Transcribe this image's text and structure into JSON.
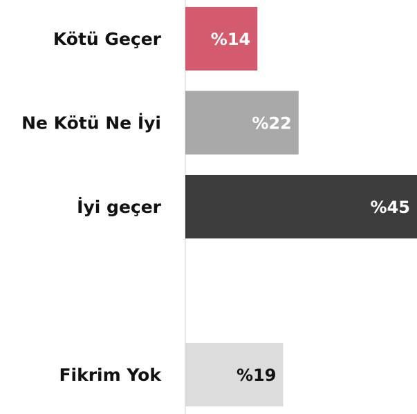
{
  "chart_data": {
    "type": "hbar",
    "categories": [
      "Kötü Geçer",
      "Ne Kötü Ne İyi",
      "İyi geçer",
      null,
      "Fikrim Yok"
    ],
    "values": [
      14,
      22,
      45,
      null,
      19
    ],
    "value_labels": [
      "%14",
      "%22",
      "%45",
      null,
      "%19"
    ],
    "colors": [
      "#d45a6e",
      "#a9a9a9",
      "#3c3c3c",
      null,
      "#dcdcdc"
    ],
    "label_colors": [
      "#ffffff",
      "#ffffff",
      "#ffffff",
      null,
      "#111111"
    ],
    "xlim": [
      0,
      45
    ]
  }
}
